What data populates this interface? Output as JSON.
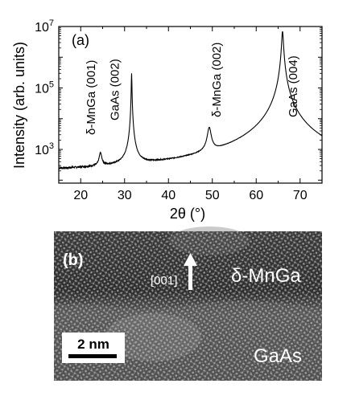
{
  "chart_data": {
    "type": "line",
    "panel_label": "(a)",
    "xlabel": "2θ (°)",
    "ylabel": "Intensity (arb. units)",
    "x_ticks": [
      20,
      30,
      40,
      50,
      60,
      70
    ],
    "xlim": [
      15,
      75
    ],
    "y_scale": "log",
    "ylim": [
      80,
      10000000
    ],
    "y_ticks": [
      {
        "value": 1000,
        "base": "10",
        "exp": "3"
      },
      {
        "value": 100000,
        "base": "10",
        "exp": "5"
      },
      {
        "value": 10000000,
        "base": "10",
        "exp": "7"
      }
    ],
    "baseline": 160,
    "peaks": [
      {
        "x": 24.5,
        "y": 650,
        "label": "δ-MnGa (001)",
        "width": 0.6
      },
      {
        "x": 31.6,
        "y": 300000,
        "label": "GaAs (002)",
        "width": 0.12
      },
      {
        "x": 49.3,
        "y": 4500,
        "label": "δ-MnGa (002)",
        "width": 0.8
      },
      {
        "x": 66.0,
        "y": 7000000,
        "label": "GaAs (004)",
        "width": 0.35
      }
    ],
    "grid": false,
    "legend": "none"
  },
  "micrograph": {
    "panel_label": "(b)",
    "direction_label": "[001]",
    "layer_top": "δ-MnGa",
    "layer_bottom": "GaAs",
    "scale_bar": "2 nm"
  }
}
